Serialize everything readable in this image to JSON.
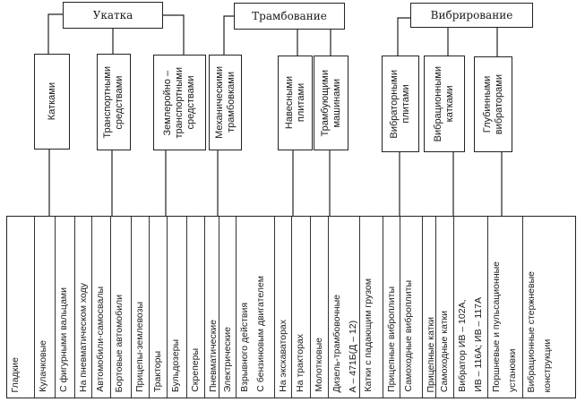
{
  "categories": [
    {
      "title": "Укатка",
      "methods": [
        "Катками",
        "Транспортными\nсредствами",
        "Землеройно –\nтранспортными\nсредствами"
      ]
    },
    {
      "title": "Трамбование",
      "methods": [
        "Механическими\nтрамбовками",
        "Навесными\nплитами",
        "Трамбующими\nмашинами"
      ]
    },
    {
      "title": "Вибрирование",
      "methods": [
        "Вибраторными\nплитами",
        "Вибрационными\nкатками",
        "Глубинными\nвибраторами"
      ]
    }
  ],
  "items": [
    "Гладкие",
    "Кулачковые",
    "С фигурными вальцами",
    "На пневматическом ходу",
    "Автомобили-самосвалы",
    "Бортовые автомобили",
    "Прицепы-землевозы",
    "Тракторы",
    "Бульдозеры",
    "Скреперы",
    "Пневматические",
    "Электрические",
    "Взрывного действия\nС бензиновым двигателем",
    "На экскаваторах",
    "На тракторах",
    "Молотковые",
    "Дизель-трамбовочные\nА – 471Б(Д – 12)",
    "Катки с падающим грузом",
    "Прицепные виброплиты",
    "Самоходные виброплиты",
    "Прицепные катки",
    "Самоходные катки",
    "Вибратор ИВ – 102А,\nИВ – 116А; ИВ – 117А",
    "Поршневые и пульсационные\nустановки",
    "Вибрационные стержневые\nконструкции"
  ]
}
